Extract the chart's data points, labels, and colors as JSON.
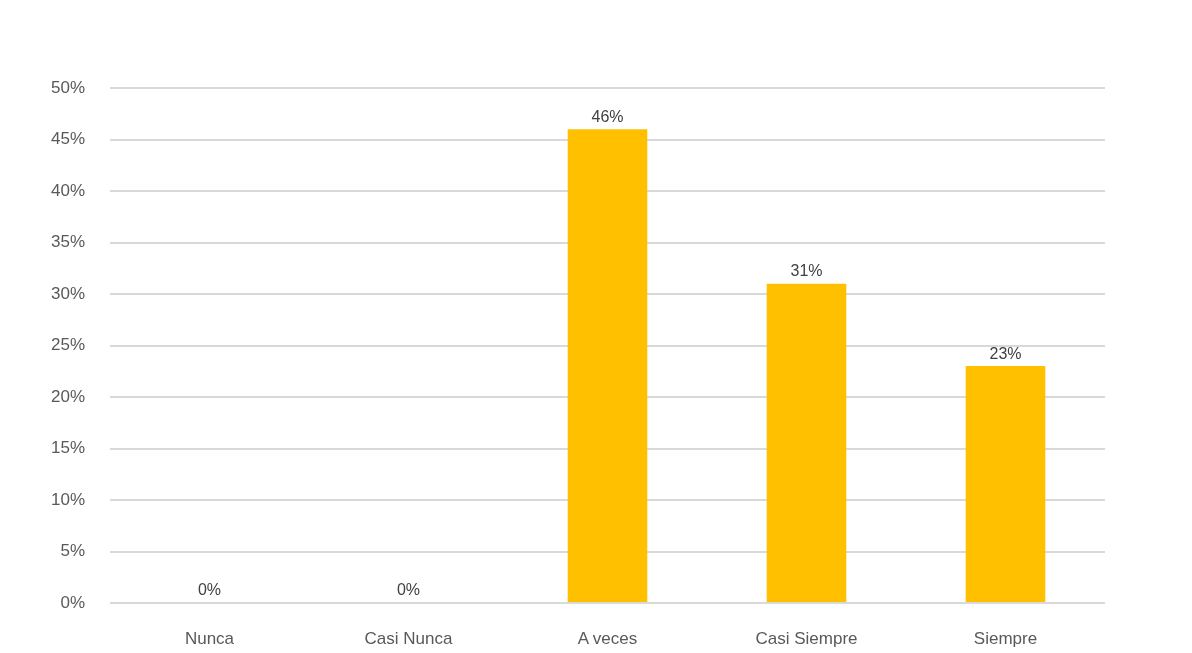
{
  "chart_data": {
    "type": "bar",
    "categories": [
      "Nunca",
      "Casi Nunca",
      "A veces",
      "Casi Siempre",
      "Siempre"
    ],
    "values": [
      0,
      0,
      46,
      31,
      23
    ],
    "value_labels": [
      "0%",
      "0%",
      "46%",
      "31%",
      "23%"
    ],
    "color": "#ffc000",
    "ylim": [
      0,
      50
    ],
    "yticks": [
      {
        "value": 0,
        "label": "0%"
      },
      {
        "value": 5,
        "label": "5%"
      },
      {
        "value": 10,
        "label": "10%"
      },
      {
        "value": 15,
        "label": "15%"
      },
      {
        "value": 20,
        "label": "20%"
      },
      {
        "value": 25,
        "label": "25%"
      },
      {
        "value": 30,
        "label": "30%"
      },
      {
        "value": 35,
        "label": "35%"
      },
      {
        "value": 40,
        "label": "40%"
      },
      {
        "value": 45,
        "label": "45%"
      },
      {
        "value": 50,
        "label": "50%"
      }
    ],
    "grid": "y"
  }
}
